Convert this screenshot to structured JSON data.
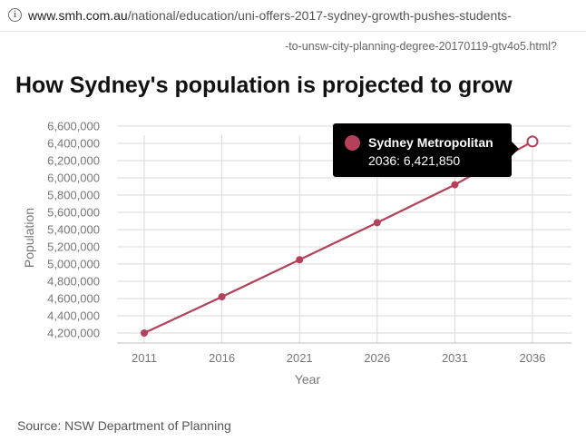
{
  "browser": {
    "url_host": "www.smh.com.au",
    "url_path": "/national/education/uni-offers-2017-sydney-growth-pushes-students-",
    "url_continuation": "-to-unsw-city-planning-degree-20170119-gtv4o5.html?"
  },
  "page": {
    "title": "How Sydney's population is projected to grow",
    "source": "Source: NSW Department of Planning"
  },
  "tooltip": {
    "series": "Sydney Metropolitan",
    "value": "2036: 6,421,850"
  },
  "colors": {
    "series": "#b5405a",
    "grid": "#d9d9d9",
    "axis_text": "#777777"
  },
  "chart_data": {
    "type": "line",
    "title": "How Sydney's population is projected to grow",
    "xlabel": "Year",
    "ylabel": "Population",
    "x": [
      2011,
      2016,
      2021,
      2026,
      2031,
      2036
    ],
    "series": [
      {
        "name": "Sydney Metropolitan",
        "values": [
          4200000,
          4620000,
          5050000,
          5480000,
          5920000,
          6421850
        ]
      }
    ],
    "y_ticks": [
      4200000,
      4400000,
      4600000,
      4800000,
      5000000,
      5200000,
      5400000,
      5600000,
      5800000,
      6000000,
      6200000,
      6400000,
      6600000
    ],
    "y_tick_labels": [
      "4,200,000",
      "4,400,000",
      "4,600,000",
      "4,800,000",
      "5,000,000",
      "5,200,000",
      "5,400,000",
      "5,600,000",
      "5,800,000",
      "6,000,000",
      "6,200,000",
      "6,400,000",
      "6,600,000"
    ],
    "x_tick_labels": [
      "2011",
      "2016",
      "2021",
      "2026",
      "2031",
      "2036"
    ],
    "ylim": [
      4200000,
      6600000
    ],
    "xlim": [
      2011,
      2036
    ],
    "grid": true,
    "legend": "none",
    "highlighted_point": {
      "x": 2036,
      "y": 6421850
    }
  }
}
